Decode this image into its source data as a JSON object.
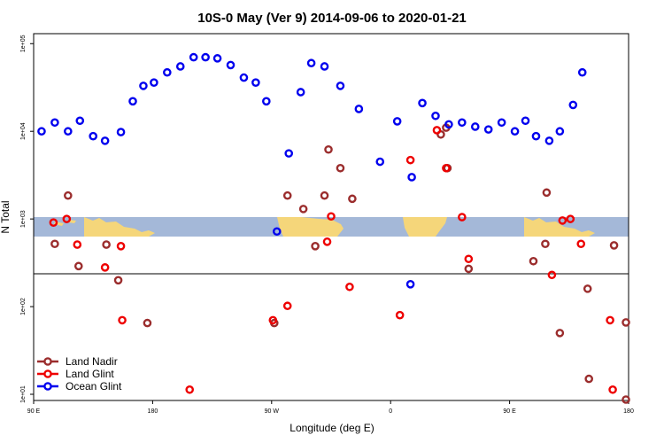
{
  "chart_data": {
    "type": "scatter",
    "title": "10S-0 May (Ver 9)   2014-09-06 to 2020-01-21",
    "xlabel": "Longitude (deg E)",
    "ylabel": "N Total",
    "x_ticks": [
      {
        "value": 90,
        "label": "90 E"
      },
      {
        "value": 180,
        "label": "180"
      },
      {
        "value": 270,
        "label": "90 W"
      },
      {
        "value": 360,
        "label": "0"
      },
      {
        "value": 450,
        "label": "90 E"
      },
      {
        "value": 540,
        "label": "180"
      }
    ],
    "y_ticks": [
      {
        "value": 10,
        "label": "1e+01"
      },
      {
        "value": 100,
        "label": "1e+02"
      },
      {
        "value": 1000,
        "label": "1e+03"
      },
      {
        "value": 10000,
        "label": "1e+04"
      },
      {
        "value": 100000,
        "label": "1e+05"
      }
    ],
    "xlim": [
      90,
      540
    ],
    "ylim": [
      8.5,
      130000
    ],
    "y_scale": "log",
    "legend_position": "bottom-left",
    "series": [
      {
        "name": "Land Nadir",
        "color": "#9b2d2d",
        "points": [
          [
            106,
            520
          ],
          [
            116,
            1850
          ],
          [
            124,
            290
          ],
          [
            145,
            510
          ],
          [
            154,
            200
          ],
          [
            176,
            65
          ],
          [
            272,
            65
          ],
          [
            282,
            1850
          ],
          [
            294,
            1300
          ],
          [
            303,
            490
          ],
          [
            310,
            1850
          ],
          [
            313,
            6200
          ],
          [
            322,
            3800
          ],
          [
            331,
            1700
          ],
          [
            403,
            3800
          ],
          [
            398,
            9200
          ],
          [
            402,
            11000
          ],
          [
            419,
            270
          ],
          [
            468,
            330
          ],
          [
            478,
            2000
          ],
          [
            477,
            520
          ],
          [
            488,
            50
          ],
          [
            509,
            160
          ],
          [
            510,
            15
          ],
          [
            529,
            500
          ],
          [
            538,
            8.7
          ],
          [
            538,
            66
          ]
        ]
      },
      {
        "name": "Land Glint",
        "color": "#ee0000",
        "points": [
          [
            105,
            910
          ],
          [
            115,
            1000
          ],
          [
            123,
            510
          ],
          [
            144,
            280
          ],
          [
            156,
            490
          ],
          [
            157,
            70
          ],
          [
            208,
            11.3
          ],
          [
            271,
            70
          ],
          [
            282,
            102
          ],
          [
            312,
            550
          ],
          [
            315,
            1070
          ],
          [
            329,
            168
          ],
          [
            367,
            80
          ],
          [
            375,
            4700
          ],
          [
            395,
            10300
          ],
          [
            402,
            3800
          ],
          [
            414,
            1050
          ],
          [
            419,
            350
          ],
          [
            482,
            230
          ],
          [
            490,
            960
          ],
          [
            496,
            1000
          ],
          [
            504,
            520
          ],
          [
            526,
            70
          ],
          [
            528,
            11.3
          ]
        ]
      },
      {
        "name": "Ocean Glint",
        "color": "#0000ee",
        "points": [
          [
            96,
            10000
          ],
          [
            106,
            12600
          ],
          [
            116,
            10000
          ],
          [
            125,
            13200
          ],
          [
            135,
            8800
          ],
          [
            144,
            7800
          ],
          [
            156,
            9800
          ],
          [
            165,
            22000
          ],
          [
            173,
            33000
          ],
          [
            181,
            36000
          ],
          [
            191,
            47000
          ],
          [
            201,
            55000
          ],
          [
            211,
            70000
          ],
          [
            220,
            70000
          ],
          [
            229,
            68000
          ],
          [
            239,
            57000
          ],
          [
            249,
            41000
          ],
          [
            258,
            36000
          ],
          [
            266,
            22000
          ],
          [
            274,
            720
          ],
          [
            283,
            5600
          ],
          [
            292,
            28000
          ],
          [
            300,
            60000
          ],
          [
            310,
            55000
          ],
          [
            322,
            33000
          ],
          [
            336,
            18000
          ],
          [
            352,
            4500
          ],
          [
            365,
            13000
          ],
          [
            375,
            180
          ],
          [
            376,
            3000
          ],
          [
            384,
            21000
          ],
          [
            394,
            15000
          ],
          [
            404,
            12000
          ],
          [
            414,
            12600
          ],
          [
            424,
            11300
          ],
          [
            434,
            10500
          ],
          [
            444,
            12600
          ],
          [
            454,
            10000
          ],
          [
            462,
            13200
          ],
          [
            470,
            8800
          ],
          [
            480,
            7800
          ],
          [
            488,
            10000
          ],
          [
            498,
            20000
          ],
          [
            505,
            47000
          ]
        ]
      }
    ]
  }
}
